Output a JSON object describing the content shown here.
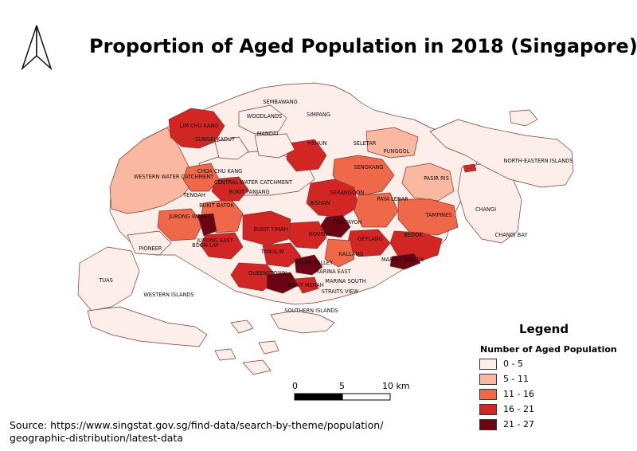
{
  "title": "Proportion of Aged Population in 2018 (Singapore)",
  "legend": {
    "heading": "Legend",
    "subtitle": "Number of Aged Population",
    "items": [
      {
        "label": "0 - 5",
        "color": "#fdeeea"
      },
      {
        "label": "5 - 11",
        "color": "#f9b89f"
      },
      {
        "label": "11 - 16",
        "color": "#f0684a"
      },
      {
        "label": "16 - 21",
        "color": "#d12624"
      },
      {
        "label": "21 - 27",
        "color": "#6b0413"
      }
    ]
  },
  "scale_bar": {
    "labels": [
      "0",
      "5",
      "10 km"
    ]
  },
  "source": {
    "line1": "Source: https://www.singstat.gov.sg/find-data/search-by-theme/population/",
    "line2": "geographic-distribution/latest-data"
  },
  "place_labels": [
    "SEMBAWANG",
    "SIMPANG",
    "WOODLANDS",
    "LIM CHU KANG",
    "MANDAI",
    "SUNGEI KADUT",
    "YISHUN",
    "SELETAR",
    "PUNGGOL",
    "NORTH-EASTERN ISLANDS",
    "WESTERN WATER CATCHMENT",
    "CHOA CHU KANG",
    "CENTRAL WATER CATCHMENT",
    "SENGKANG",
    "PASIR RIS",
    "TENGAH",
    "BUKIT PANJANG",
    "SERANGOON",
    "BUKIT BATOK",
    "BISHAN",
    "PAYA LEBAR",
    "CHANGI",
    "JURONG WEST",
    "TOA PAYOH",
    "TAMPINES",
    "JURONG EAST",
    "BUKIT TIMAH",
    "NOVENA",
    "GEYLANG",
    "BEDOK",
    "CHANGI BAY",
    "PIONEER",
    "BOON LAY",
    "TANGLIN",
    "KALLANG",
    "MARINE PARADE",
    "RIVER VALLEY",
    "QUEENSTOWN",
    "MARINA EAST",
    "TUAS",
    "BUKIT MERAH",
    "MARINA SOUTH",
    "WESTERN ISLANDS",
    "STRAITS VIEW",
    "SOUTHERN ISLANDS"
  ]
}
